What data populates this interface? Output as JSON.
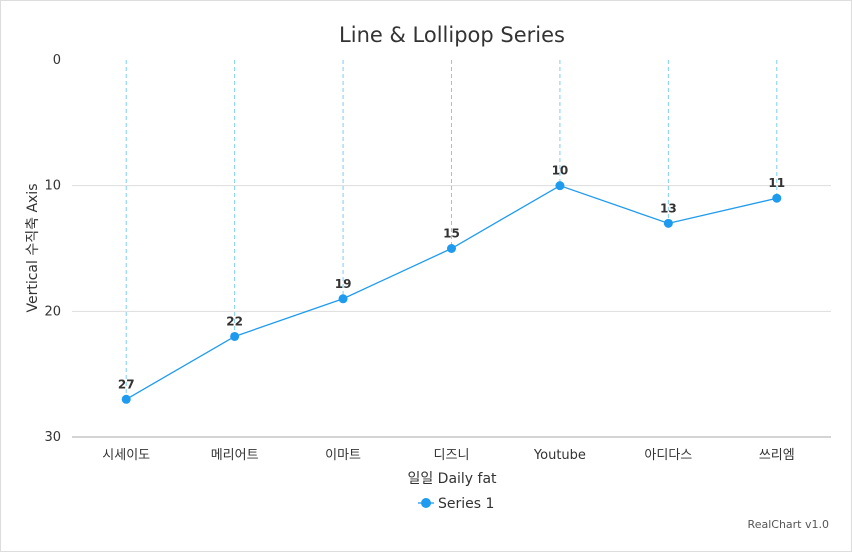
{
  "chart_data": {
    "type": "line",
    "title": "Line & Lollipop Series",
    "categories": [
      "시세이도",
      "메리어트",
      "이마트",
      "디즈니",
      "Youtube",
      "아디다스",
      "쓰리엠"
    ],
    "series": [
      {
        "name": "Series 1",
        "values": [
          27,
          22,
          19,
          15,
          10,
          13,
          11
        ]
      }
    ],
    "xlabel": "일일 Daily fat",
    "ylabel": "Vertical 수직축 Axis",
    "ylim": [
      0,
      30
    ],
    "y_reversed": true,
    "yticks": [
      "0",
      "10",
      "20",
      "30"
    ],
    "grid": true,
    "legend": "bottom-center",
    "credit": "RealChart v1.0",
    "colors": {
      "series": "#1e9bef",
      "drop_line": "#7fcdf2",
      "grid": "#dddddd",
      "axis": "#aaaaaa"
    }
  }
}
